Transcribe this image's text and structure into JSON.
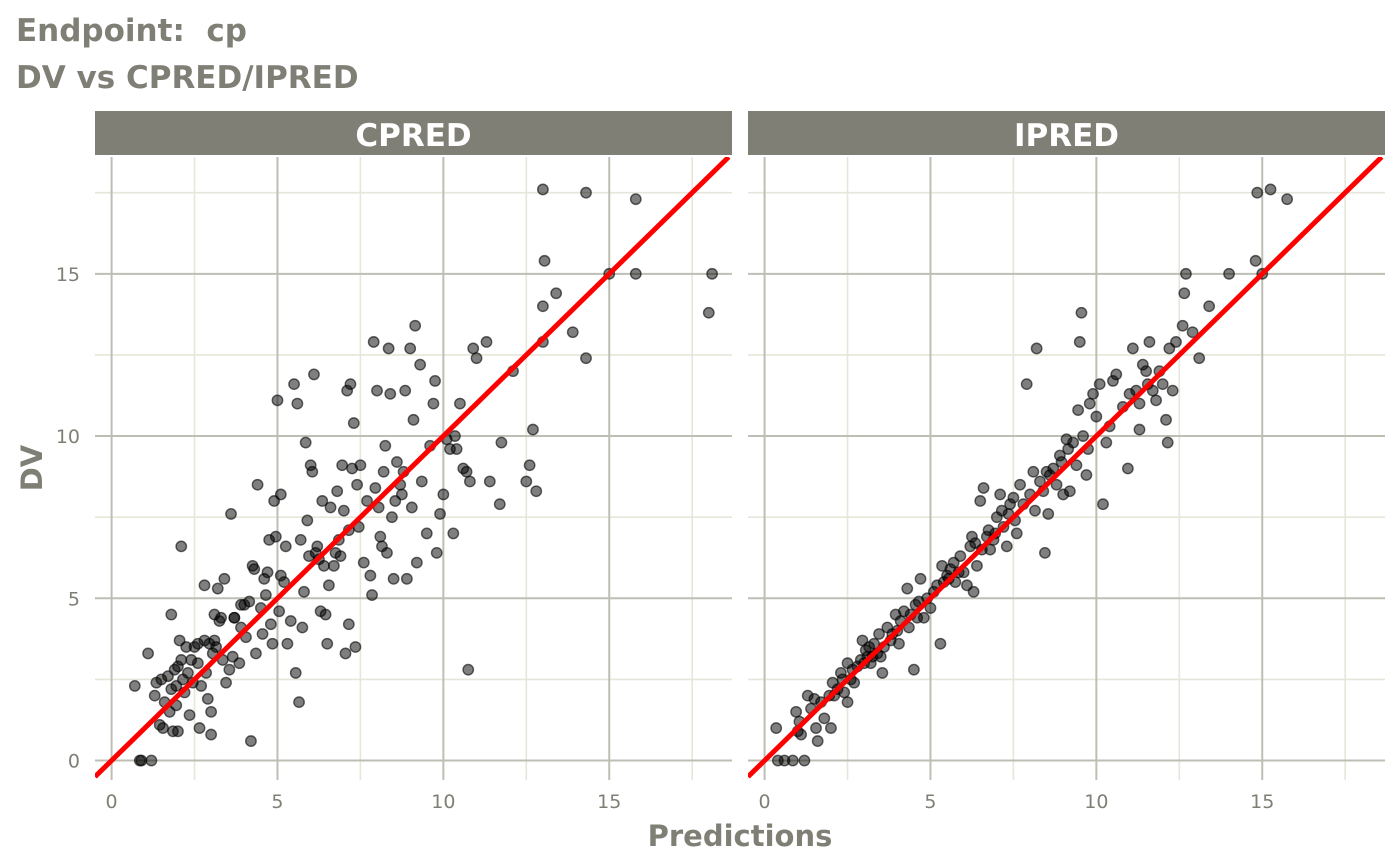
{
  "title_line1": "Endpoint:  cp",
  "title_line2": "DV vs CPRED/IPRED",
  "colors": {
    "strip": "#7f7f76",
    "grid_major": "#bebeb4",
    "grid_minor": "#e6e6da",
    "text": "#7f7f76",
    "point": "#000000",
    "identity_line": "#ff0000"
  },
  "chart_data": [
    {
      "type": "scatter",
      "panel": "CPRED",
      "xlabel": "Predictions",
      "ylabel": "DV",
      "xlim": [
        -0.5,
        18.7
      ],
      "ylim": [
        -0.6,
        18.6
      ],
      "x_ticks": [
        0,
        5,
        10,
        15
      ],
      "y_ticks": [
        0,
        5,
        10,
        15
      ],
      "reference_line": "identity (y = x)",
      "grid": true,
      "points": [
        [
          0.7,
          2.3
        ],
        [
          0.9,
          0
        ],
        [
          0.85,
          0
        ],
        [
          1.2,
          0
        ],
        [
          1.1,
          3.3
        ],
        [
          1.3,
          2.0
        ],
        [
          1.35,
          2.4
        ],
        [
          1.45,
          1.1
        ],
        [
          1.5,
          2.5
        ],
        [
          1.55,
          1.0
        ],
        [
          1.6,
          1.8
        ],
        [
          1.7,
          2.6
        ],
        [
          1.75,
          1.5
        ],
        [
          1.8,
          4.5
        ],
        [
          1.8,
          2.2
        ],
        [
          1.85,
          0.9
        ],
        [
          1.9,
          2.8
        ],
        [
          1.95,
          1.7
        ],
        [
          2.0,
          2.9
        ],
        [
          2.0,
          0.9
        ],
        [
          2.05,
          3.7
        ],
        [
          2.1,
          6.6
        ],
        [
          2.1,
          3.1
        ],
        [
          2.15,
          2.5
        ],
        [
          2.2,
          2.1
        ],
        [
          2.25,
          3.5
        ],
        [
          2.35,
          1.4
        ],
        [
          2.4,
          3.1
        ],
        [
          2.45,
          2.4
        ],
        [
          2.5,
          3.5
        ],
        [
          2.6,
          3.0
        ],
        [
          2.65,
          1.0
        ],
        [
          2.7,
          2.3
        ],
        [
          2.8,
          3.7
        ],
        [
          2.8,
          5.4
        ],
        [
          2.85,
          2.7
        ],
        [
          2.9,
          1.9
        ],
        [
          2.95,
          3.6
        ],
        [
          3.0,
          1.5
        ],
        [
          3.0,
          0.8
        ],
        [
          3.05,
          3.3
        ],
        [
          3.1,
          4.5
        ],
        [
          3.1,
          3.7
        ],
        [
          3.15,
          3.5
        ],
        [
          3.2,
          5.3
        ],
        [
          3.25,
          4.3
        ],
        [
          3.3,
          4.4
        ],
        [
          3.35,
          3.1
        ],
        [
          3.4,
          5.6
        ],
        [
          3.45,
          2.4
        ],
        [
          3.55,
          2.8
        ],
        [
          3.6,
          7.6
        ],
        [
          3.65,
          3.2
        ],
        [
          3.7,
          4.4
        ],
        [
          3.85,
          3.0
        ],
        [
          3.9,
          4.1
        ],
        [
          4.0,
          4.8
        ],
        [
          4.05,
          3.8
        ],
        [
          4.15,
          4.9
        ],
        [
          4.2,
          0.6
        ],
        [
          4.25,
          6.0
        ],
        [
          4.3,
          5.9
        ],
        [
          4.35,
          3.3
        ],
        [
          4.4,
          8.5
        ],
        [
          4.5,
          4.7
        ],
        [
          4.55,
          3.9
        ],
        [
          4.6,
          5.6
        ],
        [
          4.65,
          5.1
        ],
        [
          4.7,
          5.8
        ],
        [
          4.75,
          6.8
        ],
        [
          4.8,
          4.2
        ],
        [
          4.85,
          3.6
        ],
        [
          4.9,
          8.0
        ],
        [
          4.95,
          6.9
        ],
        [
          5.0,
          11.1
        ],
        [
          5.05,
          4.6
        ],
        [
          5.1,
          8.2
        ],
        [
          5.2,
          5.5
        ],
        [
          5.25,
          6.6
        ],
        [
          5.3,
          3.6
        ],
        [
          5.4,
          4.3
        ],
        [
          5.5,
          11.6
        ],
        [
          5.55,
          2.7
        ],
        [
          5.6,
          11.0
        ],
        [
          5.65,
          1.8
        ],
        [
          5.7,
          6.8
        ],
        [
          5.75,
          4.1
        ],
        [
          5.8,
          5.2
        ],
        [
          5.85,
          9.8
        ],
        [
          5.9,
          7.4
        ],
        [
          5.95,
          6.3
        ],
        [
          6.0,
          9.1
        ],
        [
          6.05,
          8.9
        ],
        [
          6.1,
          11.9
        ],
        [
          6.15,
          6.4
        ],
        [
          6.2,
          6.6
        ],
        [
          6.3,
          4.6
        ],
        [
          6.35,
          8.0
        ],
        [
          6.4,
          6.0
        ],
        [
          6.45,
          4.5
        ],
        [
          6.5,
          3.6
        ],
        [
          6.55,
          5.4
        ],
        [
          6.6,
          7.8
        ],
        [
          6.7,
          6.0
        ],
        [
          6.75,
          6.4
        ],
        [
          6.8,
          8.3
        ],
        [
          6.85,
          6.8
        ],
        [
          6.9,
          6.3
        ],
        [
          6.95,
          9.1
        ],
        [
          7.0,
          7.7
        ],
        [
          7.05,
          3.3
        ],
        [
          7.1,
          11.4
        ],
        [
          7.15,
          4.2
        ],
        [
          7.2,
          11.6
        ],
        [
          7.25,
          9.0
        ],
        [
          7.3,
          10.4
        ],
        [
          7.35,
          3.5
        ],
        [
          7.4,
          8.5
        ],
        [
          7.45,
          7.2
        ],
        [
          7.5,
          9.1
        ],
        [
          7.6,
          6.1
        ],
        [
          7.7,
          8.0
        ],
        [
          7.8,
          5.7
        ],
        [
          7.85,
          5.1
        ],
        [
          7.9,
          12.9
        ],
        [
          7.95,
          8.4
        ],
        [
          8.0,
          11.4
        ],
        [
          8.05,
          7.8
        ],
        [
          8.1,
          6.9
        ],
        [
          8.15,
          6.6
        ],
        [
          8.2,
          8.9
        ],
        [
          8.25,
          9.7
        ],
        [
          8.3,
          6.4
        ],
        [
          8.35,
          12.7
        ],
        [
          8.4,
          11.3
        ],
        [
          8.45,
          7.5
        ],
        [
          8.5,
          5.6
        ],
        [
          8.55,
          8.0
        ],
        [
          8.6,
          9.2
        ],
        [
          8.7,
          8.5
        ],
        [
          8.75,
          8.2
        ],
        [
          8.8,
          8.9
        ],
        [
          8.85,
          11.4
        ],
        [
          8.9,
          5.6
        ],
        [
          9.0,
          12.7
        ],
        [
          9.05,
          7.8
        ],
        [
          9.1,
          10.5
        ],
        [
          9.15,
          13.4
        ],
        [
          9.2,
          6.1
        ],
        [
          9.3,
          12.2
        ],
        [
          9.35,
          8.6
        ],
        [
          9.5,
          7.0
        ],
        [
          9.6,
          9.7
        ],
        [
          9.7,
          11.0
        ],
        [
          9.75,
          11.7
        ],
        [
          9.8,
          6.4
        ],
        [
          9.9,
          7.6
        ],
        [
          10.0,
          8.2
        ],
        [
          10.1,
          9.9
        ],
        [
          10.2,
          9.6
        ],
        [
          10.3,
          7.0
        ],
        [
          10.35,
          10.0
        ],
        [
          10.4,
          9.6
        ],
        [
          10.5,
          11.0
        ],
        [
          10.6,
          9.0
        ],
        [
          10.7,
          8.9
        ],
        [
          10.75,
          2.8
        ],
        [
          10.8,
          8.6
        ],
        [
          10.9,
          12.7
        ],
        [
          11.0,
          12.4
        ],
        [
          11.3,
          12.9
        ],
        [
          11.4,
          8.6
        ],
        [
          11.7,
          7.9
        ],
        [
          11.75,
          9.8
        ],
        [
          12.1,
          12.0
        ],
        [
          12.5,
          8.6
        ],
        [
          12.7,
          10.2
        ],
        [
          12.8,
          8.3
        ],
        [
          12.6,
          9.1
        ],
        [
          13.0,
          17.6
        ],
        [
          13.0,
          12.9
        ],
        [
          13.0,
          14.0
        ],
        [
          13.05,
          15.4
        ],
        [
          13.4,
          14.4
        ],
        [
          13.9,
          13.2
        ],
        [
          14.3,
          12.4
        ],
        [
          14.3,
          17.5
        ],
        [
          15.0,
          15.0
        ],
        [
          15.8,
          17.3
        ],
        [
          15.8,
          15.0
        ],
        [
          18.0,
          13.8
        ],
        [
          18.1,
          15.0
        ],
        [
          3.7,
          4.4
        ],
        [
          2.3,
          2.7
        ],
        [
          1.95,
          2.3
        ],
        [
          2.6,
          3.6
        ],
        [
          3.9,
          4.8
        ],
        [
          5.1,
          5.7
        ],
        [
          6.25,
          6.2
        ],
        [
          7.15,
          7.1
        ]
      ]
    },
    {
      "type": "scatter",
      "panel": "IPRED",
      "xlabel": "Predictions",
      "ylabel": "DV",
      "xlim": [
        -0.5,
        18.7
      ],
      "ylim": [
        -0.6,
        18.6
      ],
      "x_ticks": [
        0,
        5,
        10,
        15
      ],
      "y_ticks": [
        0,
        5,
        10,
        15
      ],
      "reference_line": "identity (y = x)",
      "grid": true,
      "points": [
        [
          0.35,
          1.0
        ],
        [
          0.4,
          0
        ],
        [
          0.6,
          0
        ],
        [
          0.85,
          0
        ],
        [
          1.2,
          0
        ],
        [
          0.95,
          1.5
        ],
        [
          1.0,
          0.9
        ],
        [
          1.05,
          1.2
        ],
        [
          1.1,
          0.8
        ],
        [
          1.3,
          2.0
        ],
        [
          1.4,
          1.6
        ],
        [
          1.5,
          1.9
        ],
        [
          1.55,
          1.0
        ],
        [
          1.6,
          0.6
        ],
        [
          1.7,
          1.8
        ],
        [
          1.8,
          1.3
        ],
        [
          1.95,
          2.0
        ],
        [
          2.0,
          1.0
        ],
        [
          2.05,
          2.4
        ],
        [
          2.1,
          2.0
        ],
        [
          2.2,
          2.2
        ],
        [
          2.3,
          2.7
        ],
        [
          2.4,
          2.1
        ],
        [
          2.5,
          3.0
        ],
        [
          2.5,
          1.8
        ],
        [
          2.6,
          2.5
        ],
        [
          2.65,
          2.8
        ],
        [
          2.7,
          2.4
        ],
        [
          2.8,
          2.9
        ],
        [
          2.9,
          3.1
        ],
        [
          2.95,
          3.7
        ],
        [
          3.0,
          3.0
        ],
        [
          3.05,
          3.4
        ],
        [
          3.1,
          3.2
        ],
        [
          3.15,
          3.5
        ],
        [
          3.2,
          3.0
        ],
        [
          3.3,
          3.6
        ],
        [
          3.4,
          3.3
        ],
        [
          3.45,
          3.9
        ],
        [
          3.5,
          3.2
        ],
        [
          3.55,
          2.7
        ],
        [
          3.6,
          3.5
        ],
        [
          3.7,
          4.1
        ],
        [
          3.8,
          3.7
        ],
        [
          3.85,
          3.9
        ],
        [
          3.95,
          4.5
        ],
        [
          4.0,
          4.0
        ],
        [
          4.05,
          3.6
        ],
        [
          4.1,
          4.3
        ],
        [
          4.2,
          4.6
        ],
        [
          4.3,
          5.3
        ],
        [
          4.35,
          4.1
        ],
        [
          4.4,
          4.5
        ],
        [
          4.5,
          2.8
        ],
        [
          4.55,
          4.8
        ],
        [
          4.6,
          4.4
        ],
        [
          4.65,
          4.9
        ],
        [
          4.7,
          5.6
        ],
        [
          4.8,
          4.4
        ],
        [
          4.9,
          5.0
        ],
        [
          5.0,
          4.7
        ],
        [
          5.1,
          5.2
        ],
        [
          5.2,
          5.4
        ],
        [
          5.3,
          3.6
        ],
        [
          5.35,
          6.0
        ],
        [
          5.4,
          5.5
        ],
        [
          5.5,
          5.7
        ],
        [
          5.6,
          5.9
        ],
        [
          5.7,
          6.1
        ],
        [
          5.75,
          5.5
        ],
        [
          5.85,
          5.8
        ],
        [
          5.9,
          6.3
        ],
        [
          6.0,
          5.8
        ],
        [
          6.1,
          5.4
        ],
        [
          6.2,
          6.6
        ],
        [
          6.25,
          6.9
        ],
        [
          6.3,
          5.2
        ],
        [
          6.35,
          6.7
        ],
        [
          6.4,
          6.0
        ],
        [
          6.5,
          8.0
        ],
        [
          6.55,
          6.5
        ],
        [
          6.6,
          8.4
        ],
        [
          6.7,
          6.9
        ],
        [
          6.75,
          7.1
        ],
        [
          6.8,
          6.5
        ],
        [
          6.9,
          6.8
        ],
        [
          7.0,
          7.5
        ],
        [
          7.1,
          8.2
        ],
        [
          7.15,
          7.7
        ],
        [
          7.2,
          7.2
        ],
        [
          7.3,
          6.6
        ],
        [
          7.35,
          7.6
        ],
        [
          7.4,
          7.9
        ],
        [
          7.5,
          8.1
        ],
        [
          7.55,
          7.4
        ],
        [
          7.6,
          7.0
        ],
        [
          7.7,
          8.5
        ],
        [
          7.8,
          7.9
        ],
        [
          7.9,
          11.6
        ],
        [
          8.0,
          8.2
        ],
        [
          8.1,
          8.9
        ],
        [
          8.15,
          7.7
        ],
        [
          8.2,
          12.7
        ],
        [
          8.3,
          8.6
        ],
        [
          8.4,
          8.3
        ],
        [
          8.45,
          6.4
        ],
        [
          8.5,
          8.9
        ],
        [
          8.55,
          7.6
        ],
        [
          8.6,
          8.8
        ],
        [
          8.7,
          9.0
        ],
        [
          8.8,
          8.5
        ],
        [
          8.9,
          9.4
        ],
        [
          9.0,
          8.2
        ],
        [
          9.1,
          9.9
        ],
        [
          9.15,
          9.6
        ],
        [
          9.2,
          8.3
        ],
        [
          9.3,
          9.8
        ],
        [
          9.4,
          9.1
        ],
        [
          9.45,
          10.8
        ],
        [
          9.5,
          12.9
        ],
        [
          9.55,
          13.8
        ],
        [
          9.6,
          10.0
        ],
        [
          9.7,
          8.8
        ],
        [
          9.75,
          9.6
        ],
        [
          9.8,
          11.0
        ],
        [
          9.9,
          11.3
        ],
        [
          10.0,
          10.6
        ],
        [
          10.1,
          11.6
        ],
        [
          10.2,
          7.9
        ],
        [
          10.3,
          9.8
        ],
        [
          10.4,
          10.3
        ],
        [
          10.5,
          11.7
        ],
        [
          10.6,
          11.9
        ],
        [
          10.8,
          10.9
        ],
        [
          11.0,
          11.3
        ],
        [
          11.1,
          12.7
        ],
        [
          11.2,
          11.4
        ],
        [
          11.3,
          11.0
        ],
        [
          11.4,
          12.2
        ],
        [
          11.5,
          12.0
        ],
        [
          11.55,
          11.6
        ],
        [
          11.6,
          12.9
        ],
        [
          11.7,
          11.4
        ],
        [
          11.8,
          11.1
        ],
        [
          11.9,
          12.0
        ],
        [
          12.0,
          11.6
        ],
        [
          12.1,
          10.5
        ],
        [
          12.15,
          9.8
        ],
        [
          12.2,
          12.7
        ],
        [
          12.3,
          11.4
        ],
        [
          12.4,
          12.9
        ],
        [
          12.6,
          13.4
        ],
        [
          12.65,
          14.4
        ],
        [
          12.7,
          15.0
        ],
        [
          12.9,
          13.2
        ],
        [
          13.1,
          12.4
        ],
        [
          13.4,
          14.0
        ],
        [
          14.0,
          15.0
        ],
        [
          14.8,
          15.4
        ],
        [
          14.85,
          17.5
        ],
        [
          15.0,
          15.0
        ],
        [
          15.25,
          17.6
        ],
        [
          15.75,
          17.3
        ],
        [
          10.95,
          9.0
        ],
        [
          11.3,
          10.2
        ],
        [
          2.35,
          2.5
        ],
        [
          3.25,
          3.2
        ],
        [
          5.55,
          5.6
        ],
        [
          6.95,
          7.0
        ],
        [
          8.95,
          9.2
        ]
      ]
    }
  ]
}
